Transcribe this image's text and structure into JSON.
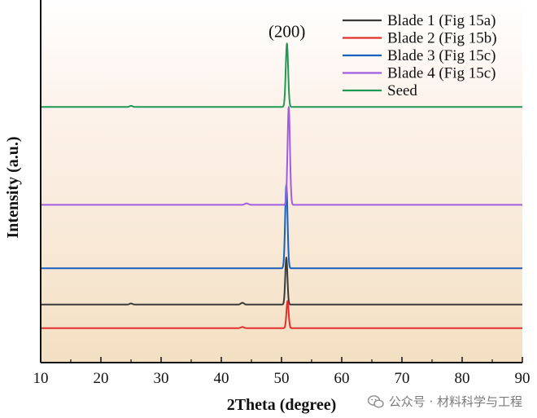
{
  "chart_data": {
    "type": "line",
    "title": "",
    "xlabel": "2Theta (degree)",
    "ylabel": "Intensity (a.u.)",
    "xlim": [
      10,
      90
    ],
    "xticks": [
      10,
      20,
      30,
      40,
      50,
      60,
      70,
      80,
      90
    ],
    "yticks_shown": false,
    "grid": false,
    "legend_placement": "top-right",
    "background": "vertical gradient from white (top) to light tan (bottom)",
    "annotations": [
      {
        "text": "(200)",
        "x": 50.9,
        "attached_to": "Seed"
      }
    ],
    "series": [
      {
        "name": "Blade 1 (Fig 15a)",
        "color": "#3a3a3a",
        "baseline": 0.16,
        "peaks": [
          {
            "x": 50.8,
            "height": 0.13,
            "width": 0.18
          },
          {
            "x": 43.5,
            "height": 0.005,
            "width": 0.25
          },
          {
            "x": 25.0,
            "height": 0.003,
            "width": 0.25
          }
        ]
      },
      {
        "name": "Blade 2 (Fig 15b)",
        "color": "#e0302b",
        "baseline": 0.095,
        "peaks": [
          {
            "x": 51.0,
            "height": 0.075,
            "width": 0.18
          },
          {
            "x": 43.5,
            "height": 0.003,
            "width": 0.25
          }
        ]
      },
      {
        "name": "Blade 3 (Fig 15c)",
        "color": "#1a5fc0",
        "baseline": 0.26,
        "peaks": [
          {
            "x": 50.8,
            "height": 0.23,
            "width": 0.2
          }
        ]
      },
      {
        "name": "Blade 4 (Fig 15c)",
        "color": "#a25ce0",
        "baseline": 0.435,
        "peaks": [
          {
            "x": 51.2,
            "height": 0.27,
            "width": 0.2
          },
          {
            "x": 44.2,
            "height": 0.004,
            "width": 0.3
          }
        ]
      },
      {
        "name": "Seed",
        "color": "#1f9a55",
        "baseline": 0.705,
        "peaks": [
          {
            "x": 50.9,
            "height": 0.175,
            "width": 0.2
          },
          {
            "x": 25.0,
            "height": 0.003,
            "width": 0.25
          }
        ]
      }
    ]
  },
  "watermark": {
    "text": "公众号 · 材料科学与工程",
    "icon": "wechat-icon"
  }
}
